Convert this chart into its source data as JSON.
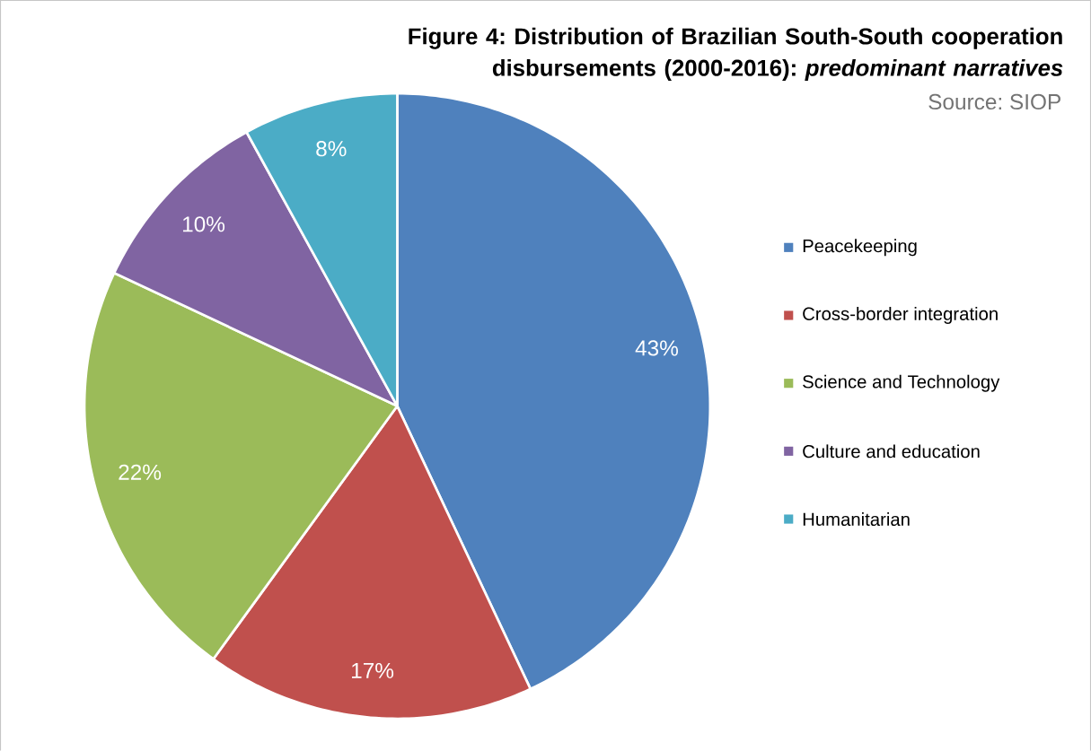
{
  "chart_data": {
    "type": "pie",
    "title": "Figure 4: Distribution of Brazilian South-South cooperation disbursements (2000-2016): *predominant narratives*",
    "annotations": [
      "Source: SIOP"
    ],
    "categories": [
      "Peacekeeping",
      "Cross-border integration",
      "Science and Technology",
      "Culture and education",
      "Humanitarian"
    ],
    "values": [
      43,
      17,
      22,
      10,
      8
    ],
    "colors": [
      "#4f81bd",
      "#c0504d",
      "#9bbb59",
      "#8064a2",
      "#4bacc6"
    ],
    "value_labels": [
      "43%",
      "17%",
      "22%",
      "10%",
      "8%"
    ],
    "legend": "right"
  }
}
